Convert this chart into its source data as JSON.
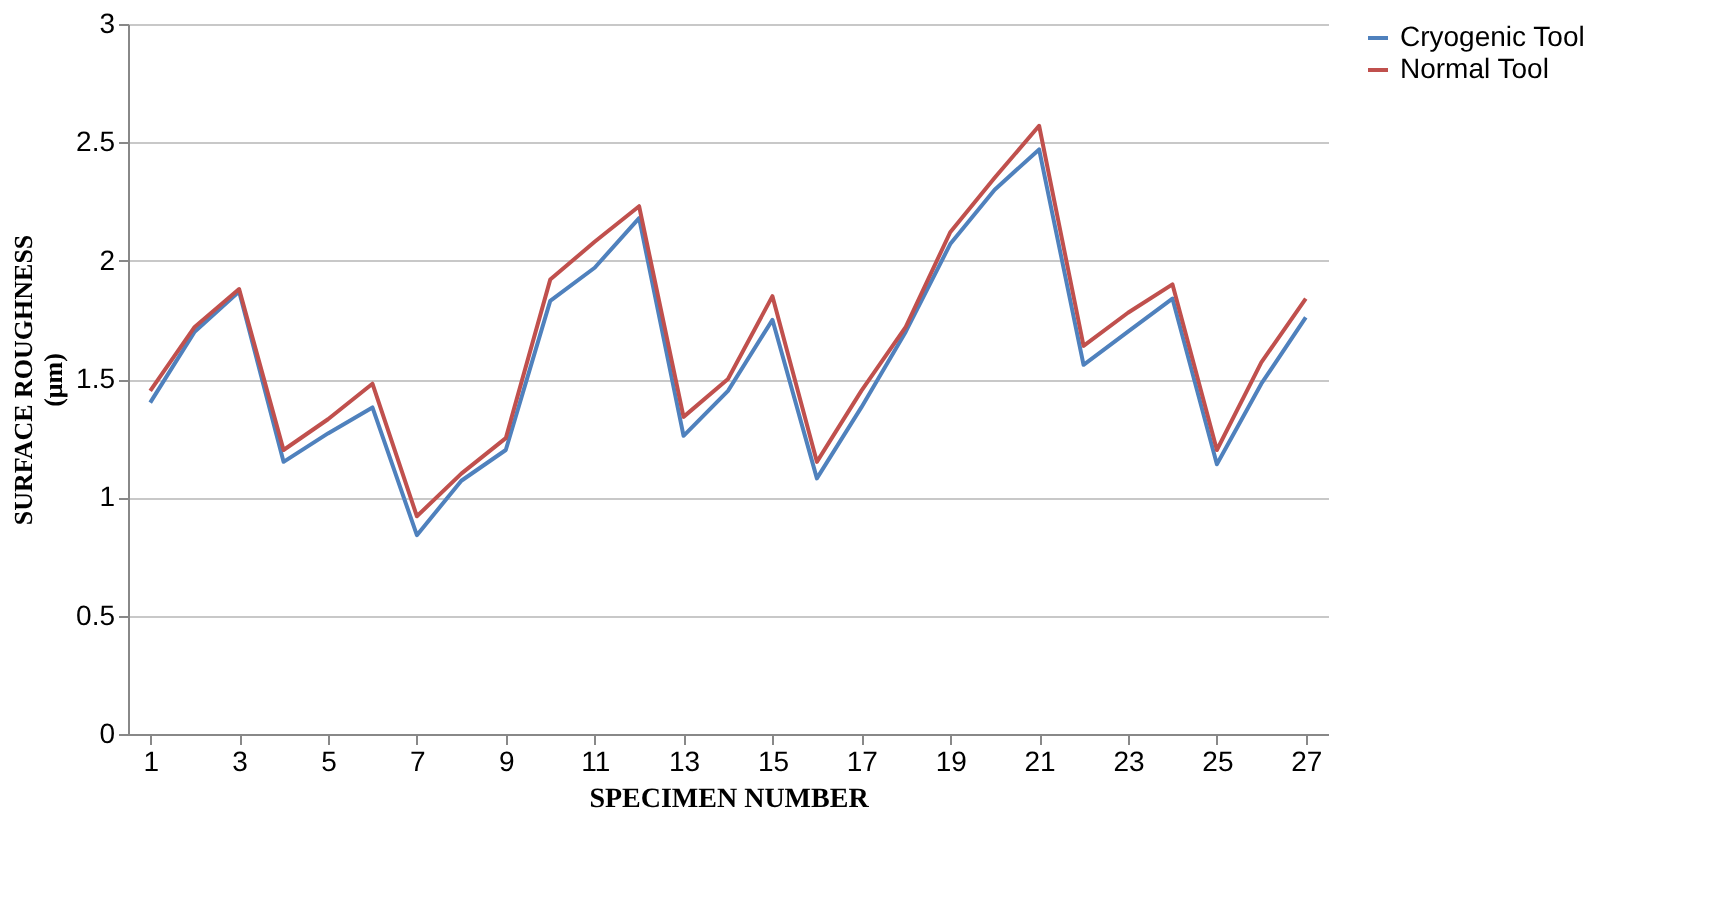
{
  "chart_data": {
    "type": "line",
    "xlabel": "SPECIMEN NUMBER",
    "ylabel": "SURFACE ROUGHNESS\n(μm)",
    "x": [
      1,
      2,
      3,
      4,
      5,
      6,
      7,
      8,
      9,
      10,
      11,
      12,
      13,
      14,
      15,
      16,
      17,
      18,
      19,
      20,
      21,
      22,
      23,
      24,
      25,
      26,
      27
    ],
    "series": [
      {
        "name": "Cryogenic Tool",
        "color": "#4f81bd",
        "values": [
          1.4,
          1.7,
          1.87,
          1.15,
          1.27,
          1.38,
          0.84,
          1.07,
          1.2,
          1.83,
          1.97,
          2.18,
          1.26,
          1.45,
          1.75,
          1.08,
          1.38,
          1.7,
          2.07,
          2.3,
          2.47,
          1.56,
          1.7,
          1.84,
          1.14,
          1.48,
          1.76
        ]
      },
      {
        "name": "Normal Tool",
        "color": "#c0504d",
        "values": [
          1.45,
          1.72,
          1.88,
          1.2,
          1.33,
          1.48,
          0.92,
          1.1,
          1.25,
          1.92,
          2.08,
          2.23,
          1.34,
          1.5,
          1.85,
          1.15,
          1.45,
          1.72,
          2.12,
          2.35,
          2.57,
          1.64,
          1.78,
          1.9,
          1.2,
          1.57,
          1.84
        ]
      }
    ],
    "xlim": [
      0.5,
      27.5
    ],
    "xticks": [
      1,
      3,
      5,
      7,
      9,
      11,
      13,
      15,
      17,
      19,
      21,
      23,
      25,
      27
    ],
    "ylim": [
      0,
      3
    ],
    "yticks": [
      0,
      0.5,
      1,
      1.5,
      2,
      2.5,
      3
    ],
    "grid": "y",
    "legend": "right",
    "marker": "none",
    "line_style": "solid"
  }
}
